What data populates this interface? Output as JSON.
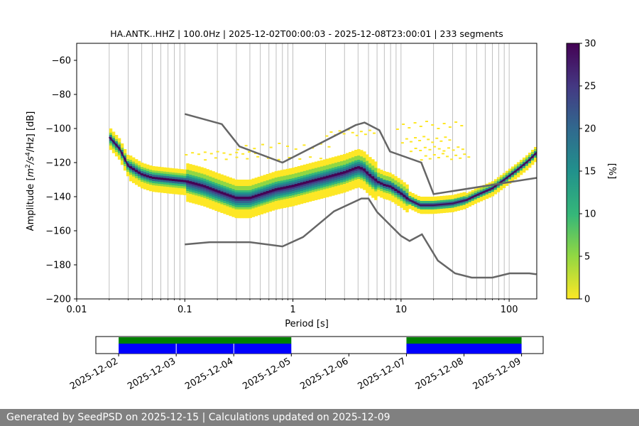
{
  "chart_data": [
    {
      "type": "heatmap",
      "title": "HA.ANTK..HHZ | 100.0Hz | 2025-12-02T00:00:03 - 2025-12-08T23:00:01 | 233 segments",
      "xlabel": "Period [s]",
      "ylabel_parts": {
        "a": "Amplitude [",
        "b": "m",
        "c": "2",
        "d": "/",
        "e": "s",
        "f": "4",
        "g": "/Hz] [dB]"
      },
      "x_scale": "log",
      "xlim": [
        0.01,
        180
      ],
      "ylim": [
        -200,
        -50
      ],
      "x_ticks": [
        {
          "value": 0.01,
          "label": "0.01"
        },
        {
          "value": 0.1,
          "label": "0.1"
        },
        {
          "value": 1,
          "label": "1"
        },
        {
          "value": 10,
          "label": "10"
        },
        {
          "value": 100,
          "label": "100"
        }
      ],
      "y_ticks": [
        {
          "value": -60,
          "label": "−60"
        },
        {
          "value": -80,
          "label": "−80"
        },
        {
          "value": -100,
          "label": "−100"
        },
        {
          "value": -120,
          "label": "−120"
        },
        {
          "value": -140,
          "label": "−140"
        },
        {
          "value": -160,
          "label": "−160"
        },
        {
          "value": -180,
          "label": "−180"
        },
        {
          "value": -200,
          "label": "−200"
        }
      ],
      "grid": "x-minor-and-major",
      "colorbar": {
        "label": "[%]",
        "range": [
          0,
          30
        ],
        "ticks": [
          {
            "value": 0,
            "label": "0"
          },
          {
            "value": 5,
            "label": "5"
          },
          {
            "value": 10,
            "label": "10"
          },
          {
            "value": 15,
            "label": "15"
          },
          {
            "value": 20,
            "label": "20"
          },
          {
            "value": 25,
            "label": "25"
          },
          {
            "value": 30,
            "label": "30"
          }
        ],
        "colormap": [
          "#fde725",
          "#90d743",
          "#35b779",
          "#21918c",
          "#31688e",
          "#443983",
          "#440154"
        ]
      },
      "series": [
        {
          "kind": "mode",
          "points": [
            [
              0.02,
              -105
            ],
            [
              0.025,
              -112
            ],
            [
              0.03,
              -122
            ],
            [
              0.04,
              -127
            ],
            [
              0.05,
              -129
            ],
            [
              0.07,
              -130
            ],
            [
              0.1,
              -131
            ],
            [
              0.15,
              -134
            ],
            [
              0.2,
              -137
            ],
            [
              0.3,
              -141
            ],
            [
              0.4,
              -141
            ],
            [
              0.5,
              -139
            ],
            [
              0.7,
              -136
            ],
            [
              1,
              -134
            ],
            [
              1.5,
              -131
            ],
            [
              2,
              -129
            ],
            [
              3,
              -126
            ],
            [
              4,
              -123
            ],
            [
              4.5,
              -124
            ],
            [
              5,
              -127
            ],
            [
              6,
              -131
            ],
            [
              7,
              -133
            ],
            [
              8,
              -134
            ],
            [
              10,
              -138
            ],
            [
              12,
              -142
            ],
            [
              15,
              -145
            ],
            [
              20,
              -145
            ],
            [
              30,
              -144
            ],
            [
              40,
              -142
            ],
            [
              50,
              -139
            ],
            [
              70,
              -135
            ],
            [
              90,
              -130
            ],
            [
              120,
              -124
            ],
            [
              150,
              -119
            ],
            [
              180,
              -114
            ]
          ]
        },
        {
          "kind": "noise-model-upper",
          "points": [
            [
              0.1,
              -91.5
            ],
            [
              0.22,
              -97.4
            ],
            [
              0.32,
              -110.5
            ],
            [
              0.8,
              -120
            ],
            [
              3.8,
              -98
            ],
            [
              4.6,
              -96.5
            ],
            [
              6.3,
              -101
            ],
            [
              7.9,
              -113.5
            ],
            [
              15.4,
              -120
            ],
            [
              20,
              -138.5
            ],
            [
              354,
              -126
            ]
          ]
        },
        {
          "kind": "noise-model-lower",
          "points": [
            [
              0.1,
              -168
            ],
            [
              0.17,
              -166.7
            ],
            [
              0.4,
              -166.7
            ],
            [
              0.8,
              -169.2
            ],
            [
              1.24,
              -163.7
            ],
            [
              2.4,
              -148.6
            ],
            [
              4.3,
              -141.1
            ],
            [
              5,
              -141.1
            ],
            [
              6,
              -149
            ],
            [
              10,
              -163
            ],
            [
              12,
              -166
            ],
            [
              15.6,
              -162.1
            ],
            [
              21.9,
              -177.5
            ],
            [
              31.6,
              -185
            ],
            [
              45,
              -187.5
            ],
            [
              70,
              -187.5
            ],
            [
              101,
              -185
            ],
            [
              154,
              -185
            ],
            [
              178,
              -185.5
            ]
          ]
        }
      ]
    },
    {
      "type": "timeline",
      "dates": [
        "2025-12-02",
        "2025-12-03",
        "2025-12-04",
        "2025-12-05",
        "2025-12-06",
        "2025-12-07",
        "2025-12-08",
        "2025-12-09"
      ],
      "range": [
        "2025-12-01T14:30",
        "2025-12-09T09:00"
      ],
      "coverage_colors": {
        "data": "#0000ff",
        "processed": "#008000"
      },
      "segments": [
        {
          "start": "2025-12-02",
          "end": "2025-12-05"
        },
        {
          "start": "2025-12-07",
          "end": "2025-12-09"
        }
      ],
      "gap_markers": [
        "2025-12-03",
        "2025-12-04"
      ]
    }
  ],
  "footer": {
    "text": "Generated by SeedPSD on 2025-12-15 | Calculations updated on 2025-12-09"
  }
}
